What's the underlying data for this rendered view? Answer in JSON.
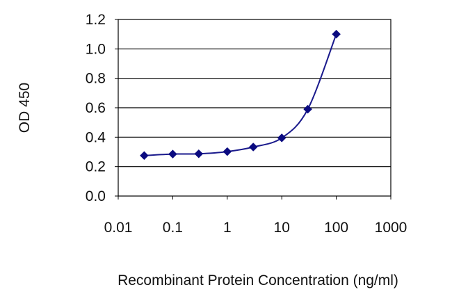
{
  "chart_data": {
    "type": "line",
    "title": "",
    "xlabel": "Recombinant Protein Concentration (ng/ml)",
    "ylabel": "OD 450",
    "xscale": "log",
    "xlim": [
      0.01,
      1000
    ],
    "ylim": [
      0.0,
      1.2
    ],
    "xticks": [
      0.01,
      0.1,
      1,
      10,
      100,
      1000
    ],
    "xtick_labels": [
      "0.01",
      "0.1",
      "1",
      "10",
      "100",
      "1000"
    ],
    "yticks": [
      0.0,
      0.2,
      0.4,
      0.6,
      0.8,
      1.0,
      1.2
    ],
    "ytick_labels": [
      "0.0",
      "0.2",
      "0.4",
      "0.6",
      "0.8",
      "1.0",
      "1.2"
    ],
    "grid": "horizontal",
    "legend": "none",
    "series": [
      {
        "x": [
          0.03,
          0.1,
          0.3,
          1,
          3,
          10,
          30,
          100
        ],
        "y": [
          0.275,
          0.285,
          0.287,
          0.302,
          0.333,
          0.395,
          0.59,
          1.1
        ]
      }
    ],
    "colors": {
      "line": "#1a1a8c",
      "marker": "#0a0a80",
      "plot_background": "#ffffff",
      "grid": "#000000"
    }
  }
}
